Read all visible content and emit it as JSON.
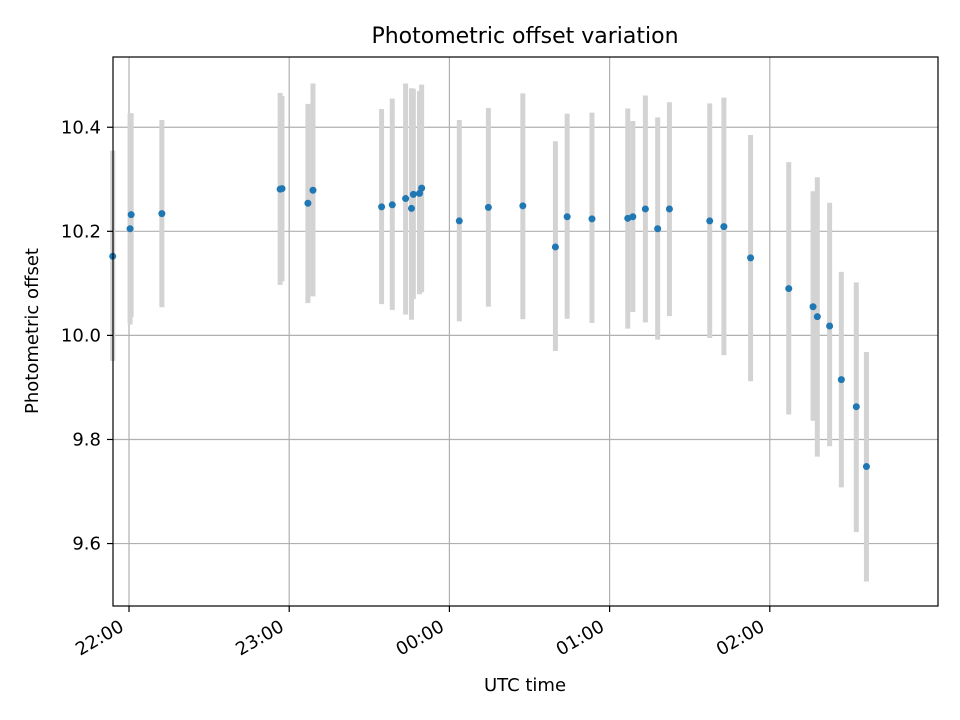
{
  "chart_data": {
    "type": "scatter",
    "title": "Photometric offset variation",
    "xlabel": "UTC time",
    "ylabel": "Photometric offset",
    "x_ticks": [
      "22:00",
      "23:00",
      "00:00",
      "01:00",
      "02:00"
    ],
    "x_tick_values_min": [
      1320,
      1380,
      1440,
      1500,
      1560
    ],
    "y_ticks": [
      "9.6",
      "9.8",
      "10.0",
      "10.2",
      "10.4"
    ],
    "y_tick_values": [
      9.6,
      9.8,
      10.0,
      10.2,
      10.4
    ],
    "xlim_min": [
      1314,
      1623
    ],
    "ylim": [
      9.48,
      10.535
    ],
    "grid": true,
    "x_unit": "minutes after 00:00 UTC of the first night",
    "point_color": "#1f77b4",
    "errorbar_color": "#d3d3d3",
    "series": [
      {
        "points": [
          {
            "t": 1313.9,
            "y": 10.152,
            "lo": 9.951,
            "hi": 10.355
          },
          {
            "t": 1320.4,
            "y": 10.205,
            "lo": 10.021,
            "hi": 10.427
          },
          {
            "t": 1320.8,
            "y": 10.232,
            "lo": 10.035,
            "hi": 10.427
          },
          {
            "t": 1332.3,
            "y": 10.234,
            "lo": 10.054,
            "hi": 10.414
          },
          {
            "t": 1376.6,
            "y": 10.281,
            "lo": 10.097,
            "hi": 10.466
          },
          {
            "t": 1377.3,
            "y": 10.282,
            "lo": 10.104,
            "hi": 10.46
          },
          {
            "t": 1387.0,
            "y": 10.254,
            "lo": 10.062,
            "hi": 10.445
          },
          {
            "t": 1388.9,
            "y": 10.279,
            "lo": 10.075,
            "hi": 10.484
          },
          {
            "t": 1414.6,
            "y": 10.247,
            "lo": 10.06,
            "hi": 10.435
          },
          {
            "t": 1418.6,
            "y": 10.251,
            "lo": 10.049,
            "hi": 10.455
          },
          {
            "t": 1423.6,
            "y": 10.263,
            "lo": 10.04,
            "hi": 10.484
          },
          {
            "t": 1425.8,
            "y": 10.244,
            "lo": 10.03,
            "hi": 10.475
          },
          {
            "t": 1426.5,
            "y": 10.271,
            "lo": 10.07,
            "hi": 10.474
          },
          {
            "t": 1428.8,
            "y": 10.273,
            "lo": 10.079,
            "hi": 10.47
          },
          {
            "t": 1429.6,
            "y": 10.283,
            "lo": 10.083,
            "hi": 10.482
          },
          {
            "t": 1443.7,
            "y": 10.22,
            "lo": 10.027,
            "hi": 10.414
          },
          {
            "t": 1454.6,
            "y": 10.246,
            "lo": 10.055,
            "hi": 10.437
          },
          {
            "t": 1467.5,
            "y": 10.249,
            "lo": 10.031,
            "hi": 10.465
          },
          {
            "t": 1479.7,
            "y": 10.17,
            "lo": 9.97,
            "hi": 10.373
          },
          {
            "t": 1484.1,
            "y": 10.228,
            "lo": 10.032,
            "hi": 10.426
          },
          {
            "t": 1493.4,
            "y": 10.224,
            "lo": 10.024,
            "hi": 10.428
          },
          {
            "t": 1506.8,
            "y": 10.225,
            "lo": 10.013,
            "hi": 10.436
          },
          {
            "t": 1508.7,
            "y": 10.228,
            "lo": 10.045,
            "hi": 10.412
          },
          {
            "t": 1513.4,
            "y": 10.243,
            "lo": 10.025,
            "hi": 10.461
          },
          {
            "t": 1518.0,
            "y": 10.205,
            "lo": 9.992,
            "hi": 10.419
          },
          {
            "t": 1522.4,
            "y": 10.243,
            "lo": 10.037,
            "hi": 10.448
          },
          {
            "t": 1537.5,
            "y": 10.22,
            "lo": 9.995,
            "hi": 10.446
          },
          {
            "t": 1542.8,
            "y": 10.209,
            "lo": 9.962,
            "hi": 10.457
          },
          {
            "t": 1552.8,
            "y": 10.149,
            "lo": 9.912,
            "hi": 10.385
          },
          {
            "t": 1567.1,
            "y": 10.09,
            "lo": 9.848,
            "hi": 10.333
          },
          {
            "t": 1576.2,
            "y": 10.055,
            "lo": 9.836,
            "hi": 10.277
          },
          {
            "t": 1577.8,
            "y": 10.036,
            "lo": 9.767,
            "hi": 10.304
          },
          {
            "t": 1582.4,
            "y": 10.018,
            "lo": 9.787,
            "hi": 10.255
          },
          {
            "t": 1586.8,
            "y": 9.915,
            "lo": 9.708,
            "hi": 10.122
          },
          {
            "t": 1592.4,
            "y": 9.863,
            "lo": 9.622,
            "hi": 10.102
          },
          {
            "t": 1596.2,
            "y": 9.748,
            "lo": 9.527,
            "hi": 9.968
          }
        ]
      }
    ]
  }
}
